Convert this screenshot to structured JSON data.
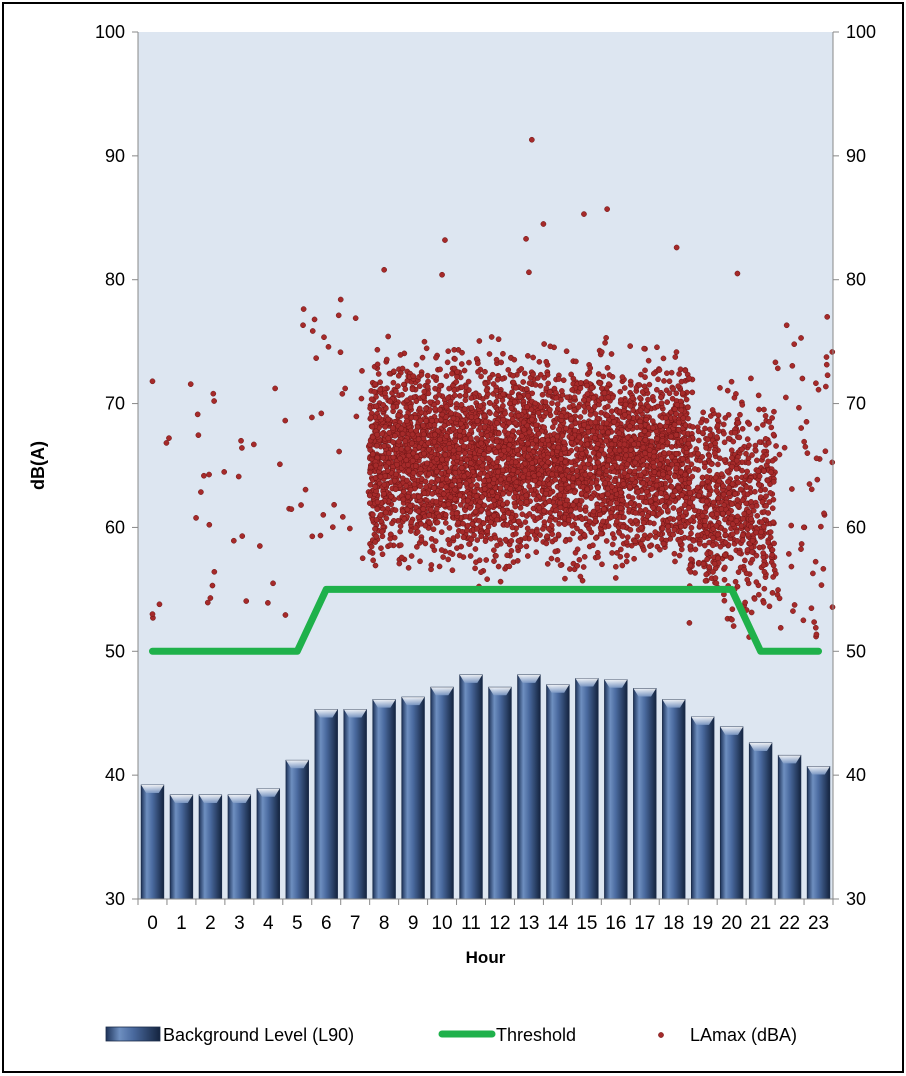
{
  "chart_data": {
    "type": "bar",
    "title": "",
    "xlabel": "Hour",
    "ylabel": "dB(A)",
    "ylim": [
      30,
      100
    ],
    "yticks": [
      30,
      40,
      50,
      60,
      70,
      80,
      90,
      100
    ],
    "secondary_yaxis": true,
    "categories": [
      "0",
      "1",
      "2",
      "3",
      "4",
      "5",
      "6",
      "7",
      "8",
      "9",
      "10",
      "11",
      "12",
      "13",
      "14",
      "15",
      "16",
      "17",
      "18",
      "19",
      "20",
      "21",
      "22",
      "23"
    ],
    "legend_position": "bottom",
    "grid": false,
    "plot_background": "#dde6f1",
    "series": [
      {
        "name": "Background Level (L90)",
        "type": "bar",
        "color": "#4a6fa5",
        "values": [
          39.2,
          38.4,
          38.4,
          38.4,
          38.9,
          41.2,
          45.3,
          45.3,
          46.1,
          46.3,
          47.1,
          48.1,
          47.1,
          48.1,
          47.3,
          47.8,
          47.7,
          47.0,
          46.1,
          44.7,
          43.9,
          42.6,
          41.6,
          40.7
        ]
      },
      {
        "name": "Threshold",
        "type": "line",
        "color": "#1fb14b",
        "values": [
          50,
          50,
          50,
          50,
          50,
          50,
          55,
          55,
          55,
          55,
          55,
          55,
          55,
          55,
          55,
          55,
          55,
          55,
          55,
          55,
          55,
          50,
          50,
          50
        ]
      },
      {
        "name": "LAmax (dBA)",
        "type": "scatter",
        "color": "#a52a2a",
        "point_clusters": [
          {
            "x_range": [
              0,
              5
            ],
            "y_range": [
              51,
              72
            ],
            "count": 30
          },
          {
            "x_range": [
              5,
              7.5
            ],
            "y_range": [
              55,
              78
            ],
            "count": 30
          },
          {
            "x_range": [
              7.5,
              18.5
            ],
            "y_range": [
              55,
              76
            ],
            "count": 4200
          },
          {
            "x_range": [
              18.5,
              21.5
            ],
            "y_range": [
              51,
              73
            ],
            "count": 700
          },
          {
            "x_range": [
              21.5,
              23.5
            ],
            "y_range": [
              51,
              77
            ],
            "count": 60
          }
        ],
        "notable_points": [
          {
            "x": 13.1,
            "y": 91.3
          },
          {
            "x": 15.7,
            "y": 85.7
          },
          {
            "x": 14.9,
            "y": 85.3
          },
          {
            "x": 13.5,
            "y": 84.5
          },
          {
            "x": 12.9,
            "y": 83.3
          },
          {
            "x": 10.1,
            "y": 83.2
          },
          {
            "x": 18.1,
            "y": 82.6
          },
          {
            "x": 8.0,
            "y": 80.8
          },
          {
            "x": 13.0,
            "y": 80.6
          },
          {
            "x": 20.2,
            "y": 80.5
          },
          {
            "x": 10.0,
            "y": 80.4
          },
          {
            "x": 23.3,
            "y": 77.0
          },
          {
            "x": 0.0,
            "y": 71.8
          },
          {
            "x": 2.1,
            "y": 70.8
          },
          {
            "x": 3.5,
            "y": 66.7
          },
          {
            "x": 4.4,
            "y": 65.1
          },
          {
            "x": 3.1,
            "y": 59.3
          },
          {
            "x": 2.0,
            "y": 54.3
          },
          {
            "x": 0.0,
            "y": 53.0
          },
          {
            "x": 6.5,
            "y": 78.4
          }
        ]
      }
    ]
  }
}
